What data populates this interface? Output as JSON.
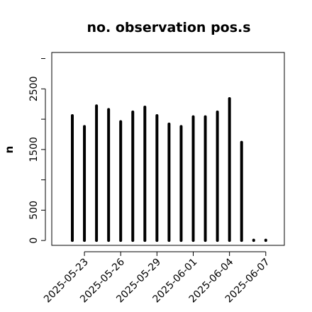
{
  "chart_data": {
    "type": "bar",
    "title": "no. observation pos.s",
    "xlabel": "",
    "ylabel": "n",
    "ylim": [
      -80,
      3100
    ],
    "yticks": [
      0,
      500,
      1500,
      2500
    ],
    "ytick_labels": [
      "0",
      "500",
      "1500",
      "2500"
    ],
    "x": [
      "2025-05-22",
      "2025-05-23",
      "2025-05-24",
      "2025-05-25",
      "2025-05-26",
      "2025-05-27",
      "2025-05-28",
      "2025-05-29",
      "2025-05-30",
      "2025-05-31",
      "2025-06-01",
      "2025-06-02",
      "2025-06-03",
      "2025-06-04",
      "2025-06-05",
      "2025-06-06",
      "2025-06-07"
    ],
    "values": [
      2060,
      1880,
      2220,
      2160,
      1960,
      2120,
      2200,
      2060,
      1920,
      1880,
      2040,
      2040,
      2120,
      2340,
      1620,
      0,
      0
    ],
    "xticks": [
      "2025-05-23",
      "2025-05-26",
      "2025-05-29",
      "2025-06-01",
      "2025-06-04",
      "2025-06-07"
    ],
    "xtick_labels": [
      "2025-05-23",
      "2025-05-26",
      "2025-05-29",
      "2025-06-01",
      "2025-06-04",
      "2025-06-07"
    ],
    "highlight_tick": "2025-05-29",
    "grid": false,
    "legend": "none"
  },
  "colors": {
    "bars": "#000000",
    "axes": "#000000",
    "tick_label": "#000000",
    "highlight_tick_label": "#228b22"
  }
}
